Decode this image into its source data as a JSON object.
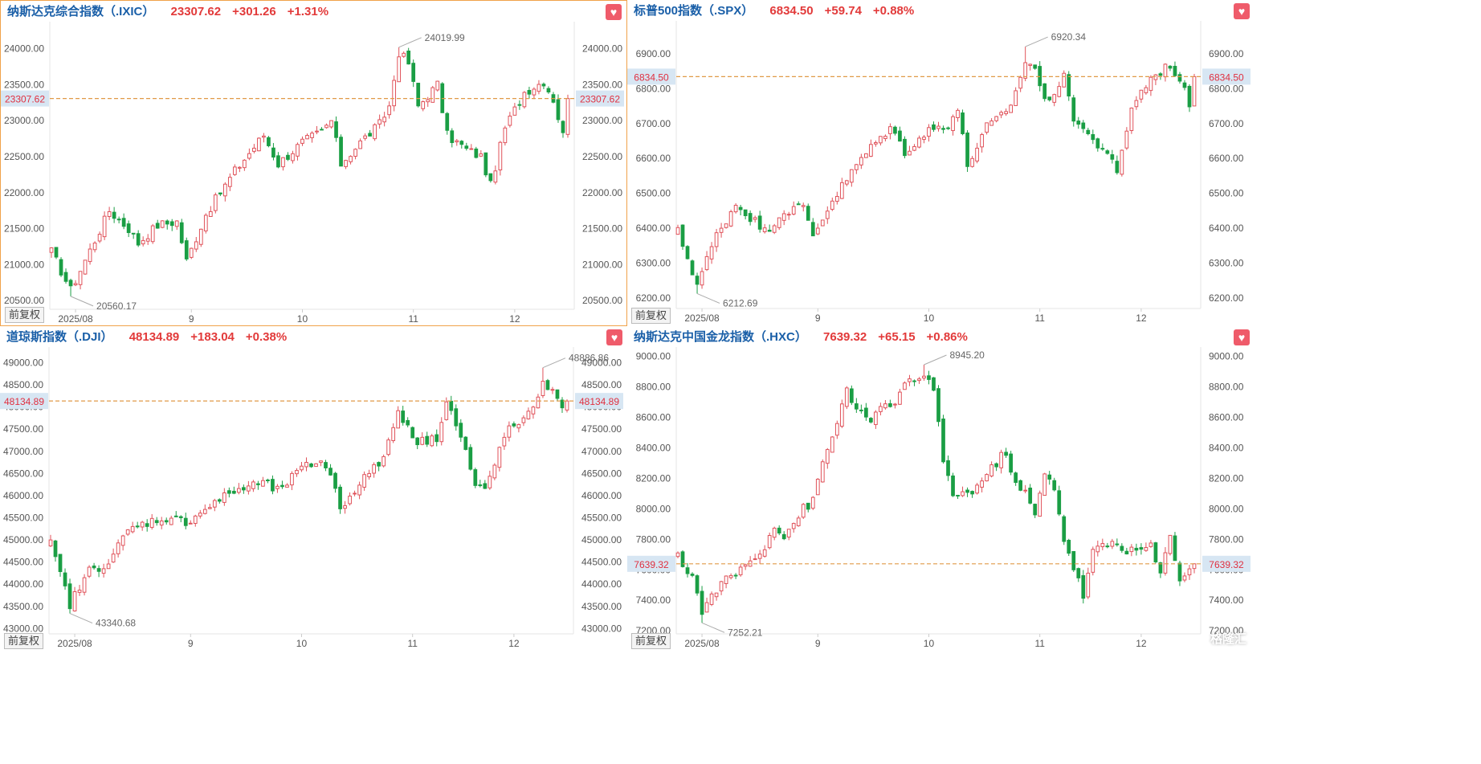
{
  "panels": [
    {
      "id": "ixic",
      "name": "纳斯达克综合指数（.IXIC）",
      "last": "23307.62",
      "change": "+301.26",
      "pct": "+1.31%",
      "adjust_label": "前复权",
      "chart_data": {
        "type": "candlestick",
        "ylim": [
          20380,
          24330
        ],
        "yticks": [
          20500,
          21000,
          21500,
          22000,
          22500,
          23000,
          23500,
          24000
        ],
        "ytick_labels": [
          "20500.00",
          "21000.00",
          "21500.00",
          "22000.00",
          "22500.00",
          "23000.00",
          "23500.00",
          "24000.00"
        ],
        "xticks": [
          {
            "label": "2025/08",
            "index": 5
          },
          {
            "label": "9",
            "index": 29
          },
          {
            "label": "10",
            "index": 52
          },
          {
            "label": "11",
            "index": 75
          },
          {
            "label": "12",
            "index": 96
          }
        ],
        "last_value": 23307.62,
        "last_label": "23307.62",
        "high_label": "24019.99",
        "high_index": 72,
        "high_value": 24019.99,
        "low_label": "20560.17",
        "low_index": 4,
        "low_value": 20560.17,
        "n_candles": 108,
        "anchors": [
          [
            0,
            21180
          ],
          [
            4,
            20650
          ],
          [
            8,
            21200
          ],
          [
            12,
            21750
          ],
          [
            16,
            21500
          ],
          [
            18,
            21300
          ],
          [
            22,
            21550
          ],
          [
            26,
            21600
          ],
          [
            28,
            21050
          ],
          [
            32,
            21700
          ],
          [
            38,
            22300
          ],
          [
            44,
            22800
          ],
          [
            47,
            22400
          ],
          [
            52,
            22700
          ],
          [
            56,
            22850
          ],
          [
            58,
            23000
          ],
          [
            60,
            22400
          ],
          [
            64,
            22700
          ],
          [
            68,
            22950
          ],
          [
            70,
            23200
          ],
          [
            72,
            23950
          ],
          [
            74,
            23800
          ],
          [
            76,
            23200
          ],
          [
            80,
            23500
          ],
          [
            82,
            22800
          ],
          [
            86,
            22600
          ],
          [
            89,
            22500
          ],
          [
            91,
            22100
          ],
          [
            94,
            22900
          ],
          [
            98,
            23400
          ],
          [
            102,
            23550
          ],
          [
            104,
            23300
          ],
          [
            106,
            22800
          ],
          [
            108,
            23307.62
          ]
        ]
      }
    },
    {
      "id": "spx",
      "name": "标普500指数（.SPX）",
      "last": "6834.50",
      "change": "+59.74",
      "pct": "+0.88%",
      "adjust_label": "前复权",
      "chart_data": {
        "type": "candlestick",
        "ylim": [
          6170,
          6985
        ],
        "yticks": [
          6200,
          6300,
          6400,
          6500,
          6600,
          6700,
          6800,
          6900
        ],
        "ytick_labels": [
          "6200.00",
          "6300.00",
          "6400.00",
          "6500.00",
          "6600.00",
          "6700.00",
          "6800.00",
          "6900.00"
        ],
        "xticks": [
          {
            "label": "2025/08",
            "index": 5
          },
          {
            "label": "9",
            "index": 29
          },
          {
            "label": "10",
            "index": 52
          },
          {
            "label": "11",
            "index": 75
          },
          {
            "label": "12",
            "index": 96
          }
        ],
        "last_value": 6834.5,
        "last_label": "6834.50",
        "high_label": "6920.34",
        "high_index": 72,
        "high_value": 6920.34,
        "low_label": "6212.69",
        "low_index": 4,
        "low_value": 6212.69,
        "n_candles": 108,
        "anchors": [
          [
            0,
            6390
          ],
          [
            4,
            6240
          ],
          [
            8,
            6380
          ],
          [
            12,
            6470
          ],
          [
            16,
            6420
          ],
          [
            18,
            6390
          ],
          [
            22,
            6450
          ],
          [
            26,
            6460
          ],
          [
            28,
            6380
          ],
          [
            32,
            6480
          ],
          [
            38,
            6600
          ],
          [
            44,
            6690
          ],
          [
            47,
            6620
          ],
          [
            52,
            6680
          ],
          [
            56,
            6700
          ],
          [
            58,
            6740
          ],
          [
            60,
            6580
          ],
          [
            64,
            6690
          ],
          [
            68,
            6730
          ],
          [
            70,
            6790
          ],
          [
            72,
            6880
          ],
          [
            74,
            6860
          ],
          [
            76,
            6760
          ],
          [
            80,
            6830
          ],
          [
            82,
            6720
          ],
          [
            86,
            6650
          ],
          [
            89,
            6620
          ],
          [
            91,
            6550
          ],
          [
            94,
            6750
          ],
          [
            98,
            6830
          ],
          [
            102,
            6870
          ],
          [
            104,
            6820
          ],
          [
            106,
            6760
          ],
          [
            108,
            6834.5
          ]
        ]
      }
    },
    {
      "id": "dji",
      "name": "道琼斯指数（.DJI）",
      "last": "48134.89",
      "change": "+183.04",
      "pct": "+0.38%",
      "adjust_label": "前复权",
      "chart_data": {
        "type": "candlestick",
        "ylim": [
          42880,
          49280
        ],
        "yticks": [
          43000,
          43500,
          44000,
          44500,
          45000,
          45500,
          46000,
          46500,
          47000,
          47500,
          48000,
          48500,
          49000
        ],
        "ytick_labels": [
          "43000.00",
          "43500.00",
          "44000.00",
          "44500.00",
          "45000.00",
          "45500.00",
          "46000.00",
          "46500.00",
          "47000.00",
          "47500.00",
          "48000.00",
          "48500.00",
          "49000.00"
        ],
        "xticks": [
          {
            "label": "2025/08",
            "index": 5
          },
          {
            "label": "9",
            "index": 29
          },
          {
            "label": "10",
            "index": 52
          },
          {
            "label": "11",
            "index": 75
          },
          {
            "label": "12",
            "index": 96
          }
        ],
        "last_value": 48134.89,
        "last_label": "48134.89",
        "high_label": "48886.86",
        "high_index": 102,
        "high_value": 48886.86,
        "low_label": "43340.68",
        "low_index": 4,
        "low_value": 43340.68,
        "n_candles": 108,
        "anchors": [
          [
            0,
            44900
          ],
          [
            4,
            43550
          ],
          [
            8,
            44300
          ],
          [
            12,
            44500
          ],
          [
            16,
            45200
          ],
          [
            20,
            45400
          ],
          [
            24,
            45500
          ],
          [
            28,
            45400
          ],
          [
            32,
            45700
          ],
          [
            38,
            46100
          ],
          [
            44,
            46300
          ],
          [
            47,
            46100
          ],
          [
            52,
            46600
          ],
          [
            56,
            46800
          ],
          [
            58,
            46500
          ],
          [
            60,
            45700
          ],
          [
            64,
            46300
          ],
          [
            68,
            46700
          ],
          [
            70,
            47200
          ],
          [
            72,
            47900
          ],
          [
            74,
            47600
          ],
          [
            76,
            47200
          ],
          [
            80,
            47300
          ],
          [
            82,
            48200
          ],
          [
            84,
            47600
          ],
          [
            86,
            47000
          ],
          [
            88,
            46200
          ],
          [
            90,
            46100
          ],
          [
            92,
            46700
          ],
          [
            94,
            47400
          ],
          [
            98,
            47700
          ],
          [
            100,
            47900
          ],
          [
            102,
            48650
          ],
          [
            104,
            48300
          ],
          [
            106,
            48000
          ],
          [
            108,
            48134.89
          ]
        ]
      }
    },
    {
      "id": "hxc",
      "name": "纳斯达克中国金龙指数（.HXC）",
      "last": "7639.32",
      "change": "+65.15",
      "pct": "+0.86%",
      "adjust_label": "前复权",
      "chart_data": {
        "type": "candlestick",
        "ylim": [
          7180,
          9040
        ],
        "yticks": [
          7200,
          7400,
          7600,
          7800,
          8000,
          8200,
          8400,
          8600,
          8800,
          9000
        ],
        "ytick_labels": [
          "7200.00",
          "7400.00",
          "7600.00",
          "7800.00",
          "8000.00",
          "8200.00",
          "8400.00",
          "8600.00",
          "8800.00",
          "9000.00"
        ],
        "xticks": [
          {
            "label": "2025/08",
            "index": 5
          },
          {
            "label": "9",
            "index": 29
          },
          {
            "label": "10",
            "index": 52
          },
          {
            "label": "11",
            "index": 75
          },
          {
            "label": "12",
            "index": 96
          }
        ],
        "last_value": 7639.32,
        "last_label": "7639.32",
        "high_label": "8945.20",
        "high_index": 51,
        "high_value": 8945.2,
        "low_label": "7252.21",
        "low_index": 5,
        "low_value": 7252.21,
        "n_candles": 108,
        "anchors": [
          [
            0,
            7680
          ],
          [
            3,
            7560
          ],
          [
            5,
            7320
          ],
          [
            8,
            7480
          ],
          [
            12,
            7580
          ],
          [
            16,
            7680
          ],
          [
            18,
            7760
          ],
          [
            20,
            7900
          ],
          [
            22,
            7820
          ],
          [
            26,
            8000
          ],
          [
            28,
            8050
          ],
          [
            30,
            8300
          ],
          [
            33,
            8560
          ],
          [
            35,
            8800
          ],
          [
            37,
            8650
          ],
          [
            40,
            8550
          ],
          [
            42,
            8700
          ],
          [
            44,
            8650
          ],
          [
            47,
            8800
          ],
          [
            49,
            8850
          ],
          [
            51,
            8880
          ],
          [
            53,
            8780
          ],
          [
            55,
            8300
          ],
          [
            57,
            8100
          ],
          [
            60,
            8100
          ],
          [
            62,
            8150
          ],
          [
            66,
            8300
          ],
          [
            68,
            8380
          ],
          [
            70,
            8150
          ],
          [
            72,
            8100
          ],
          [
            74,
            7960
          ],
          [
            76,
            8220
          ],
          [
            78,
            8150
          ],
          [
            80,
            7800
          ],
          [
            82,
            7620
          ],
          [
            84,
            7430
          ],
          [
            86,
            7720
          ],
          [
            90,
            7780
          ],
          [
            94,
            7720
          ],
          [
            98,
            7750
          ],
          [
            100,
            7560
          ],
          [
            102,
            7840
          ],
          [
            104,
            7540
          ],
          [
            108,
            7639.32
          ]
        ]
      }
    }
  ],
  "watermark": "格隆汇",
  "colors": {
    "up": "#e0525a",
    "down": "#1a9e44",
    "dash": "#e09a48",
    "axis_text": "#555555",
    "tag_bg": "#d7e6f3",
    "tag_text": "#e03040",
    "grid": "#eeeeee"
  }
}
